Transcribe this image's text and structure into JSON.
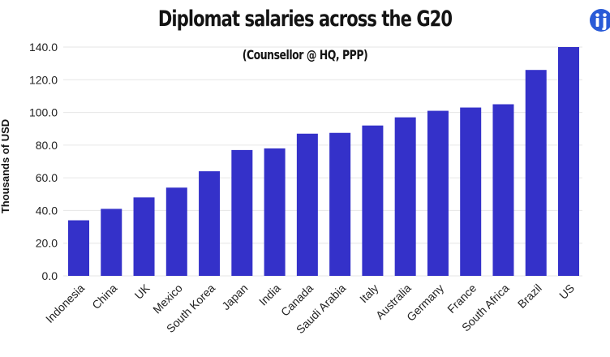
{
  "chart_data": {
    "type": "bar",
    "title": "Diplomat salaries across the G20",
    "subtitle": "(Counsellor @ HQ, PPP)",
    "xlabel": "",
    "ylabel": "Thousands of USD",
    "categories": [
      "Indonesia",
      "China",
      "UK",
      "Mexico",
      "South Korea",
      "Japan",
      "India",
      "Canada",
      "Saudi Arabia",
      "Italy",
      "Australia",
      "Germany",
      "France",
      "South Africa",
      "Brazil",
      "US"
    ],
    "values": [
      34,
      41,
      48,
      54,
      64,
      77,
      78,
      87,
      87.5,
      92,
      97,
      101,
      103,
      105,
      126,
      140
    ],
    "ylim": [
      0,
      140
    ],
    "yticks": [
      0,
      20,
      40,
      60,
      80,
      100,
      120,
      140
    ],
    "ytick_labels": [
      "0.0",
      "20.0",
      "40.0",
      "60.0",
      "80.0",
      "100.0",
      "120.0",
      "140.0"
    ],
    "grid": "horizontal",
    "bar_color": "#3431c9",
    "gridline_color": "#e6e6e6"
  },
  "logo": {
    "name": "brand-logo-icon",
    "color": "#2a5bd7"
  }
}
